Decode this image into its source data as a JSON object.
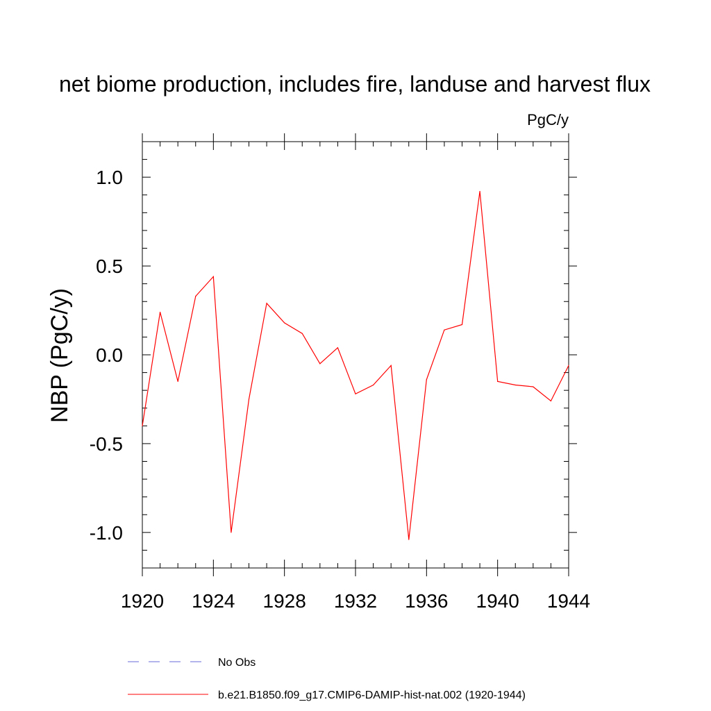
{
  "chart_data": {
    "type": "line",
    "title": "net biome production, includes fire, landuse and harvest flux",
    "units_label": "PgC/y",
    "ylabel": "NBP  (PgC/y)",
    "xlabel": "",
    "xlim": [
      1920,
      1944
    ],
    "ylim": [
      -1.2,
      1.2
    ],
    "x_ticks": [
      1920,
      1924,
      1928,
      1932,
      1936,
      1940,
      1944
    ],
    "x_tick_labels": [
      "1920",
      "1924",
      "1928",
      "1932",
      "1936",
      "1940",
      "1944"
    ],
    "y_ticks": [
      -1.0,
      -0.5,
      0.0,
      0.5,
      1.0
    ],
    "y_tick_labels": [
      "-1.0",
      "-0.5",
      "0.0",
      "0.5",
      "1.0"
    ],
    "grid": false,
    "legend_placement": "bottom-left, below plot",
    "series": [
      {
        "name": "b.e21.B1850.f09_g17.CMIP6-DAMIP-hist-nat.002 (1920-1944)",
        "color": "#ff0000",
        "style": "solid",
        "x": [
          1920,
          1921,
          1922,
          1923,
          1924,
          1925,
          1926,
          1927,
          1928,
          1929,
          1930,
          1931,
          1932,
          1933,
          1934,
          1935,
          1936,
          1937,
          1938,
          1939,
          1940,
          1941,
          1942,
          1943,
          1944
        ],
        "y": [
          -0.4,
          0.24,
          -0.15,
          0.33,
          0.44,
          -1.0,
          -0.25,
          0.29,
          0.18,
          0.12,
          -0.05,
          0.04,
          -0.22,
          -0.17,
          -0.06,
          -1.04,
          -0.14,
          0.14,
          0.17,
          0.92,
          -0.15,
          -0.17,
          -0.18,
          -0.26,
          -0.06
        ]
      }
    ],
    "legend": [
      {
        "label": "No Obs",
        "color": "#6a6ad8",
        "style": "dashed"
      },
      {
        "label": "b.e21.B1850.f09_g17.CMIP6-DAMIP-hist-nat.002 (1920-1944)",
        "color": "#ff0000",
        "style": "solid"
      }
    ]
  }
}
